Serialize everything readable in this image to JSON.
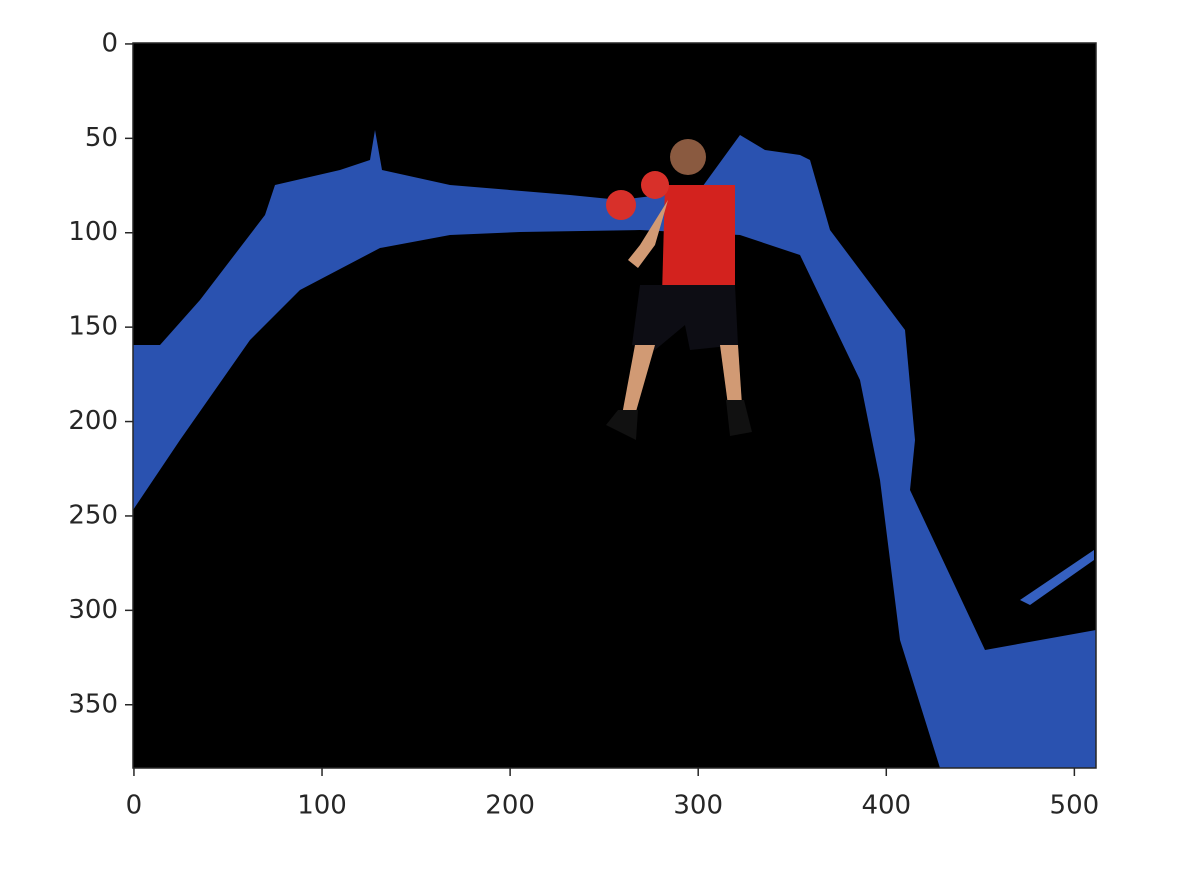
{
  "chart_data": {
    "type": "image",
    "xlim": [
      -0.5,
      511.5
    ],
    "ylim": [
      383.5,
      -0.5
    ],
    "xticks": [
      0,
      100,
      200,
      300,
      400,
      500
    ],
    "yticks": [
      0,
      50,
      100,
      150,
      200,
      250,
      300,
      350
    ]
  }
}
